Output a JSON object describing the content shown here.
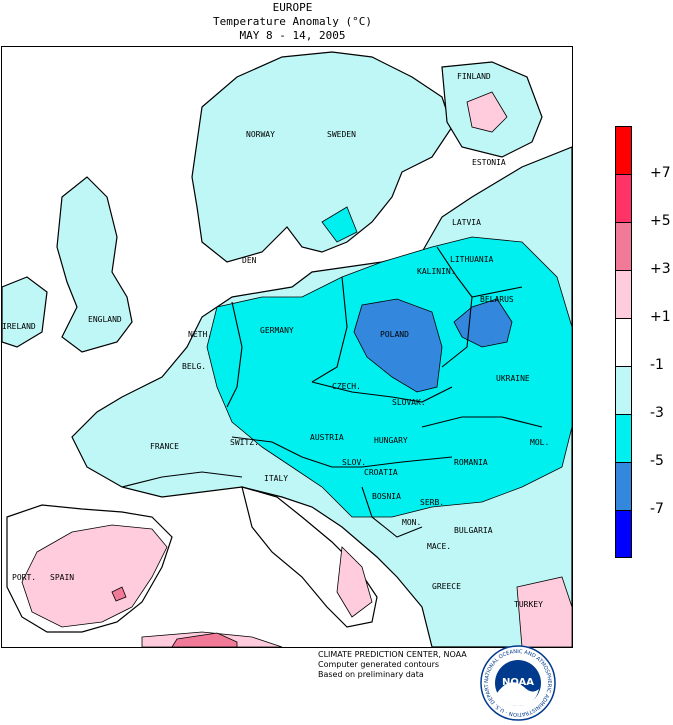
{
  "header": {
    "region": "EUROPE",
    "variable": "Temperature Anomaly (°C)",
    "period": "MAY 8 - 14, 2005"
  },
  "legend": {
    "units": "°C",
    "bins": [
      {
        "color": "#ff0000"
      },
      {
        "color": "#ff3366"
      },
      {
        "color": "#f07a98"
      },
      {
        "color": "#ffccdd"
      },
      {
        "color": "#ffffff"
      },
      {
        "color": "#bff7f7"
      },
      {
        "color": "#00f0f0"
      },
      {
        "color": "#3388dd"
      },
      {
        "color": "#0000ff"
      }
    ],
    "ticks": [
      "+7",
      "+5",
      "+3",
      "+1",
      "-1",
      "-3",
      "-5",
      "-7"
    ]
  },
  "map": {
    "land_base": "#bff7f7",
    "labels": {
      "finland": "FINLAND",
      "norway": "NORWAY",
      "sweden": "SWEDEN",
      "estonia": "ESTONIA",
      "latvia": "LATVIA",
      "lithuania": "LITHUANIA",
      "kaliningrad": "KALININ.",
      "belarus": "BELARUS",
      "den": "DEN",
      "england": "ENGLAND",
      "ireland": "IRELAND",
      "neth": "NETH.",
      "belg": "BELG.",
      "germany": "GERMANY",
      "poland": "POLAND",
      "czech": "CZECH.",
      "slovak": "SLOVAK.",
      "ukraine": "UKRAINE",
      "austria": "AUSTRIA",
      "hungary": "HUNGARY",
      "mol": "MOL.",
      "romania": "ROMANIA",
      "france": "FRANCE",
      "switz": "SWITZ.",
      "slov": "SLOV.",
      "croatia": "CROATIA",
      "italy": "ITALY",
      "bosnia": "BOSNIA",
      "serb": "SERB.",
      "mont": "MON.",
      "bulgaria": "BULGARIA",
      "mace": "MACE.",
      "port": "PORT.",
      "spain": "SPAIN",
      "greece": "GREECE",
      "turkey": "TURKEY"
    }
  },
  "credits": {
    "line1": "CLIMATE PREDICTION CENTER, NOAA",
    "line2": "Computer generated contours",
    "line3": "Based on preliminary data"
  },
  "logo": {
    "text": "NOAA",
    "ring_text": "NATIONAL OCEANIC AND ATMOSPHERIC ADMINISTRATION · U.S. DEPARTMENT OF COMMERCE ·",
    "color": "#003a8c",
    "icon": "noaa-seal-icon"
  }
}
